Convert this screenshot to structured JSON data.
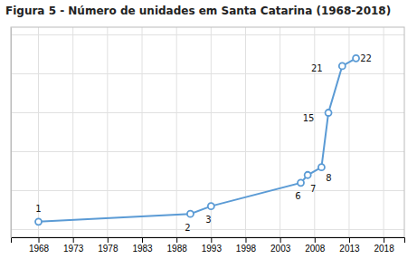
{
  "chart_data": {
    "type": "line",
    "title": "Figura 5 - Número de unidades em Santa Catarina (1968-2018)",
    "x": [
      1968,
      1990,
      1993,
      2006,
      2007,
      2009,
      2010,
      2012,
      2014
    ],
    "values": [
      1,
      2,
      3,
      6,
      7,
      8,
      15,
      21,
      22
    ],
    "color": "#5B9BD5",
    "marker": "circle",
    "data_labels": true,
    "xlim": [
      1964,
      2021
    ],
    "xticks": [
      1968,
      1973,
      1978,
      1983,
      1988,
      1993,
      1998,
      2003,
      2008,
      2013,
      2018
    ],
    "ylim": [
      -1,
      26
    ],
    "yticks": [
      0,
      5,
      10,
      15,
      20,
      25
    ],
    "grid": true,
    "tick_labels": "x"
  }
}
